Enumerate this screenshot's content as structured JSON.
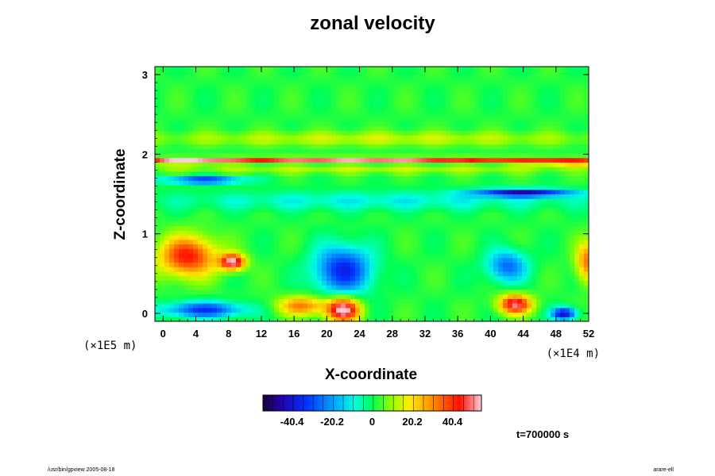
{
  "chart_data": {
    "type": "heatmap",
    "title": "zonal velocity",
    "xlabel": "X-coordinate",
    "ylabel": "Z-coordinate",
    "x_scale_label": "(×1E4 m)",
    "y_scale_label": "(×1E5 m)",
    "xlim": [
      -1,
      52
    ],
    "ylim": [
      -0.1,
      3.1
    ],
    "x_ticks": [
      0,
      4,
      8,
      12,
      16,
      20,
      24,
      28,
      32,
      36,
      40,
      44,
      48,
      52
    ],
    "y_ticks": [
      0,
      1,
      2,
      3
    ],
    "colorbar": {
      "range": [
        -55,
        55
      ],
      "ticks": [
        -40.4,
        -20.2,
        0,
        20.2,
        40.4
      ],
      "tick_labels": [
        "-40.4",
        "-20.2",
        "0",
        "20.2",
        "40.4"
      ]
    },
    "background_value": 2,
    "features": [
      {
        "x": 24,
        "z": 1.93,
        "rx": 30,
        "rz": 0.035,
        "value": 50
      },
      {
        "x": 2,
        "z": 1.91,
        "rx": 6,
        "rz": 0.03,
        "value": 35
      },
      {
        "x": 50,
        "z": 1.9,
        "rx": 6,
        "rz": 0.03,
        "value": 40
      },
      {
        "x": 26,
        "z": 2.2,
        "rx": 30,
        "rz": 0.09,
        "value": 12
      },
      {
        "x": 26,
        "z": 1.8,
        "rx": 30,
        "rz": 0.04,
        "value": 12
      },
      {
        "x": 5,
        "z": 1.68,
        "rx": 5,
        "rz": 0.05,
        "value": -35
      },
      {
        "x": 44,
        "z": 1.52,
        "rx": 6,
        "rz": 0.05,
        "value": -45
      },
      {
        "x": 26,
        "z": 1.42,
        "rx": 28,
        "rz": 0.12,
        "value": -12
      },
      {
        "x": 22,
        "z": 0.55,
        "rx": 3.5,
        "rz": 0.3,
        "value": -38
      },
      {
        "x": 42,
        "z": 0.6,
        "rx": 2.5,
        "rz": 0.2,
        "value": -28
      },
      {
        "x": 3,
        "z": 0.72,
        "rx": 3.5,
        "rz": 0.25,
        "value": 42
      },
      {
        "x": 8.5,
        "z": 0.65,
        "rx": 1.5,
        "rz": 0.1,
        "value": 52
      },
      {
        "x": 52,
        "z": 0.65,
        "rx": 1.5,
        "rz": 0.25,
        "value": 32
      },
      {
        "x": 5,
        "z": 0.05,
        "rx": 5,
        "rz": 0.1,
        "value": -35
      },
      {
        "x": 22,
        "z": 0.05,
        "rx": 2,
        "rz": 0.15,
        "value": 55
      },
      {
        "x": 17,
        "z": 0.1,
        "rx": 3,
        "rz": 0.12,
        "value": 30
      },
      {
        "x": 43,
        "z": 0.12,
        "rx": 2,
        "rz": 0.12,
        "value": 48
      },
      {
        "x": 49,
        "z": 0,
        "rx": 1.5,
        "rz": 0.08,
        "value": -45
      }
    ]
  },
  "annotations": {
    "time": "t=700000 s",
    "footer_left": "/usr/bin/gpview 2005-08-18",
    "footer_right": "arare-ell"
  }
}
